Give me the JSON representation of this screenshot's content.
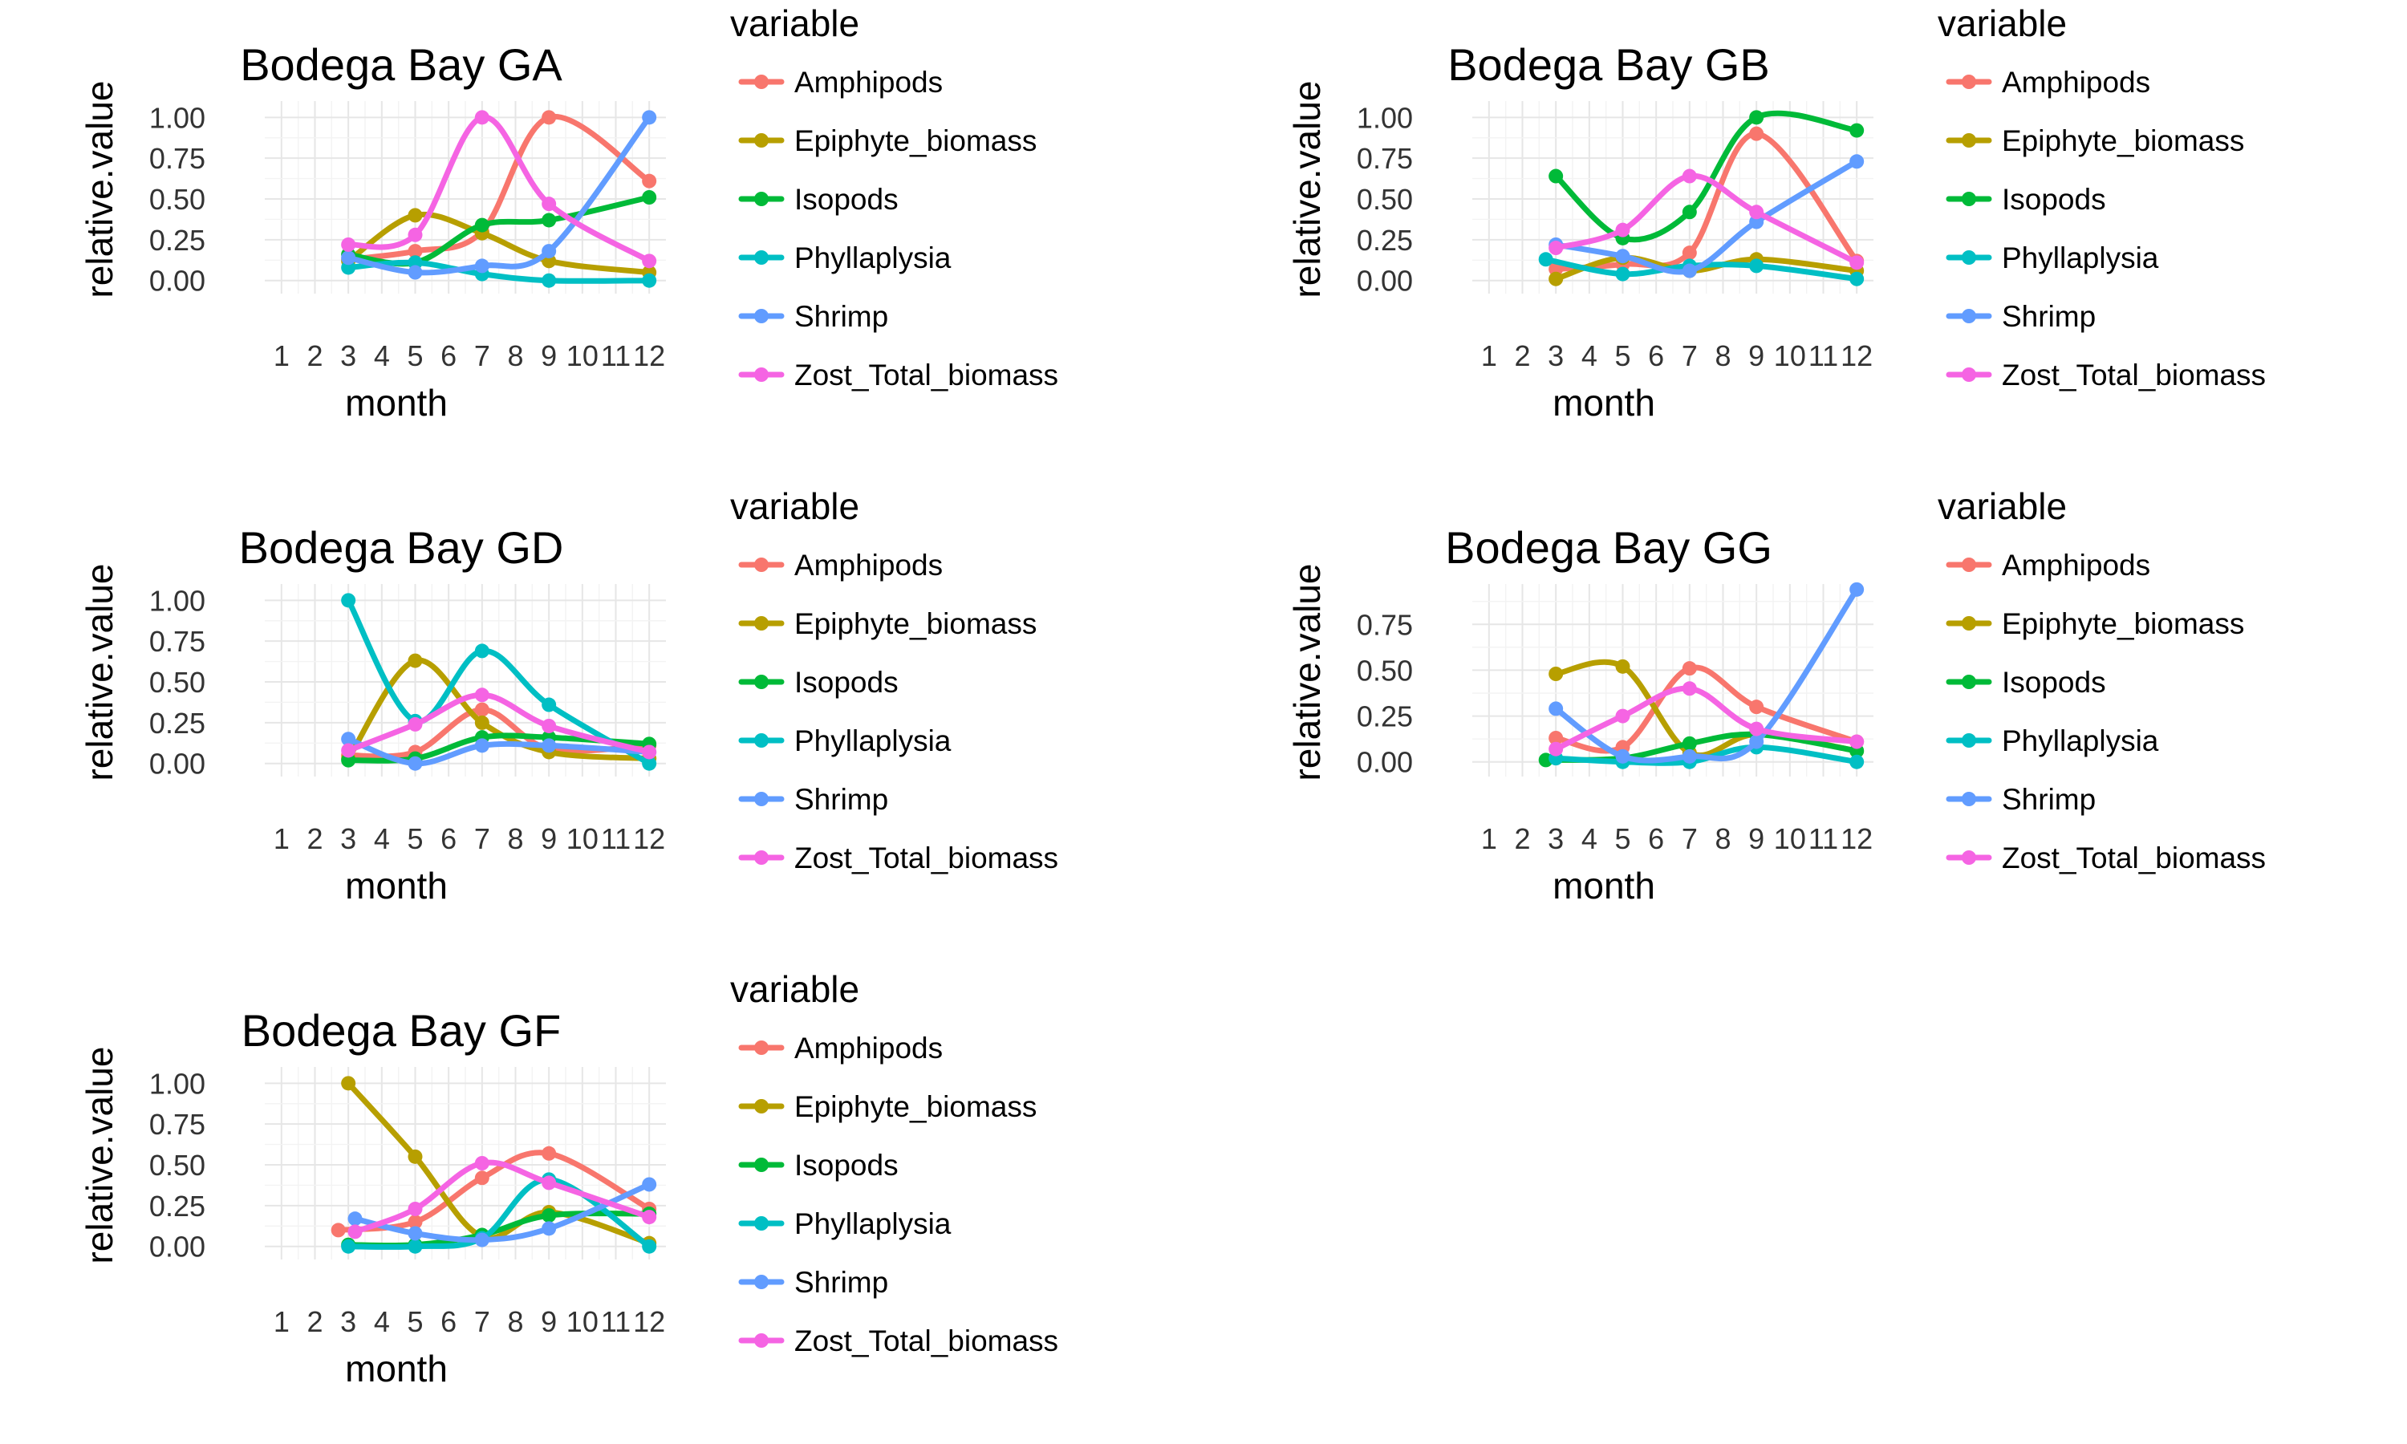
{
  "chart_data": [
    {
      "type": "line",
      "title": "Bodega Bay GA",
      "xlabel": "month",
      "ylabel": "relative.value",
      "x_ticks": [
        "1",
        "2",
        "3",
        "4",
        "5",
        "6",
        "7",
        "8",
        "9",
        "10",
        "11",
        "12"
      ],
      "y_ticks": [
        "0.00",
        "0.25",
        "0.50",
        "0.75",
        "1.00"
      ],
      "xlim": [
        0.5,
        12.5
      ],
      "ylim": [
        -0.08,
        1.1
      ],
      "legend_title": "variable",
      "legend_position": "right",
      "grid": true,
      "series": [
        {
          "name": "Amphipods",
          "x": [
            3,
            5,
            7,
            9,
            12
          ],
          "y": [
            0.13,
            0.18,
            0.3,
            1.0,
            0.61
          ]
        },
        {
          "name": "Epiphyte_biomass",
          "x": [
            3,
            5,
            7,
            9,
            12
          ],
          "y": [
            0.12,
            0.4,
            0.29,
            0.12,
            0.05
          ]
        },
        {
          "name": "Isopods",
          "x": [
            3,
            5,
            7,
            9,
            12
          ],
          "y": [
            0.16,
            0.11,
            0.34,
            0.37,
            0.51
          ]
        },
        {
          "name": "Phyllaplysia",
          "x": [
            3,
            5,
            7,
            9,
            12
          ],
          "y": [
            0.08,
            0.11,
            0.04,
            0.0,
            0.0
          ]
        },
        {
          "name": "Shrimp",
          "x": [
            3,
            5,
            7,
            9,
            12
          ],
          "y": [
            0.14,
            0.05,
            0.09,
            0.18,
            1.0
          ]
        },
        {
          "name": "Zost_Total_biomass",
          "x": [
            3,
            5,
            7,
            9,
            12
          ],
          "y": [
            0.22,
            0.28,
            1.0,
            0.47,
            0.12
          ]
        }
      ]
    },
    {
      "type": "line",
      "title": "Bodega Bay GB",
      "xlabel": "month",
      "ylabel": "relative.value",
      "x_ticks": [
        "1",
        "2",
        "3",
        "4",
        "5",
        "6",
        "7",
        "8",
        "9",
        "10",
        "11",
        "12"
      ],
      "y_ticks": [
        "0.00",
        "0.25",
        "0.50",
        "0.75",
        "1.00"
      ],
      "xlim": [
        0.5,
        12.5
      ],
      "ylim": [
        -0.08,
        1.1
      ],
      "legend_title": "variable",
      "legend_position": "right",
      "grid": true,
      "series": [
        {
          "name": "Amphipods",
          "x": [
            3,
            5,
            7,
            9,
            12
          ],
          "y": [
            0.07,
            0.1,
            0.17,
            0.9,
            0.12
          ]
        },
        {
          "name": "Epiphyte_biomass",
          "x": [
            3,
            5,
            7,
            9,
            12
          ],
          "y": [
            0.01,
            0.14,
            0.06,
            0.13,
            0.06
          ]
        },
        {
          "name": "Isopods",
          "x": [
            3,
            5,
            7,
            9,
            12
          ],
          "y": [
            0.64,
            0.26,
            0.42,
            1.0,
            0.92
          ]
        },
        {
          "name": "Phyllaplysia",
          "x": [
            2.7,
            5,
            7,
            9,
            12
          ],
          "y": [
            0.13,
            0.04,
            0.09,
            0.09,
            0.01
          ]
        },
        {
          "name": "Shrimp",
          "x": [
            3,
            5,
            7,
            9,
            12
          ],
          "y": [
            0.22,
            0.15,
            0.06,
            0.36,
            0.73
          ]
        },
        {
          "name": "Zost_Total_biomass",
          "x": [
            3,
            5,
            7,
            9,
            12
          ],
          "y": [
            0.2,
            0.31,
            0.64,
            0.42,
            0.11
          ]
        }
      ]
    },
    {
      "type": "line",
      "title": "Bodega Bay GD",
      "xlabel": "month",
      "ylabel": "relative.value",
      "x_ticks": [
        "1",
        "2",
        "3",
        "4",
        "5",
        "6",
        "7",
        "8",
        "9",
        "10",
        "11",
        "12"
      ],
      "y_ticks": [
        "0.00",
        "0.25",
        "0.50",
        "0.75",
        "1.00"
      ],
      "xlim": [
        0.5,
        12.5
      ],
      "ylim": [
        -0.08,
        1.1
      ],
      "legend_title": "variable",
      "legend_position": "right",
      "grid": true,
      "series": [
        {
          "name": "Amphipods",
          "x": [
            3,
            5,
            7,
            9,
            12
          ],
          "y": [
            0.05,
            0.07,
            0.33,
            0.09,
            0.11
          ]
        },
        {
          "name": "Epiphyte_biomass",
          "x": [
            3,
            5,
            7,
            9,
            12
          ],
          "y": [
            0.03,
            0.63,
            0.25,
            0.07,
            0.03
          ]
        },
        {
          "name": "Isopods",
          "x": [
            3,
            5,
            7,
            9,
            12
          ],
          "y": [
            0.02,
            0.03,
            0.16,
            0.16,
            0.12
          ]
        },
        {
          "name": "Phyllaplysia",
          "x": [
            3,
            5,
            7,
            9,
            12
          ],
          "y": [
            1.0,
            0.26,
            0.69,
            0.36,
            0.0
          ]
        },
        {
          "name": "Shrimp",
          "x": [
            3,
            5,
            7,
            9,
            12
          ],
          "y": [
            0.15,
            0.0,
            0.11,
            0.11,
            0.07
          ]
        },
        {
          "name": "Zost_Total_biomass",
          "x": [
            3,
            5,
            7,
            9,
            12
          ],
          "y": [
            0.08,
            0.24,
            0.42,
            0.23,
            0.07
          ]
        }
      ]
    },
    {
      "type": "line",
      "title": "Bodega Bay GG",
      "xlabel": "month",
      "ylabel": "relative.value",
      "x_ticks": [
        "1",
        "2",
        "3",
        "4",
        "5",
        "6",
        "7",
        "8",
        "9",
        "10",
        "11",
        "12"
      ],
      "y_ticks": [
        "0.00",
        "0.25",
        "0.50",
        "0.75"
      ],
      "xlim": [
        0.5,
        12.5
      ],
      "ylim": [
        -0.08,
        0.97
      ],
      "legend_title": "variable",
      "legend_position": "right",
      "grid": true,
      "series": [
        {
          "name": "Amphipods",
          "x": [
            3,
            5,
            7,
            9,
            12
          ],
          "y": [
            0.13,
            0.08,
            0.51,
            0.3,
            0.11
          ]
        },
        {
          "name": "Epiphyte_biomass",
          "x": [
            3,
            5,
            7,
            9,
            12
          ],
          "y": [
            0.48,
            0.52,
            0.05,
            0.15,
            0.06
          ]
        },
        {
          "name": "Isopods",
          "x": [
            2.7,
            5,
            7,
            9,
            12
          ],
          "y": [
            0.01,
            0.02,
            0.1,
            0.15,
            0.06
          ]
        },
        {
          "name": "Phyllaplysia",
          "x": [
            3,
            5,
            7,
            9,
            12
          ],
          "y": [
            0.02,
            0.0,
            0.0,
            0.08,
            0.0
          ]
        },
        {
          "name": "Shrimp",
          "x": [
            3,
            5,
            7,
            9,
            12
          ],
          "y": [
            0.29,
            0.03,
            0.03,
            0.11,
            0.94
          ]
        },
        {
          "name": "Zost_Total_biomass",
          "x": [
            3,
            5,
            7,
            9,
            12
          ],
          "y": [
            0.07,
            0.25,
            0.4,
            0.18,
            0.11
          ]
        }
      ]
    },
    {
      "type": "line",
      "title": "Bodega Bay GF",
      "xlabel": "month",
      "ylabel": "relative.value",
      "x_ticks": [
        "1",
        "2",
        "3",
        "4",
        "5",
        "6",
        "7",
        "8",
        "9",
        "10",
        "11",
        "12"
      ],
      "y_ticks": [
        "0.00",
        "0.25",
        "0.50",
        "0.75",
        "1.00"
      ],
      "xlim": [
        0.5,
        12.5
      ],
      "ylim": [
        -0.08,
        1.1
      ],
      "legend_title": "variable",
      "legend_position": "right",
      "grid": true,
      "series": [
        {
          "name": "Amphipods",
          "x": [
            2.7,
            5,
            7,
            9,
            12
          ],
          "y": [
            0.1,
            0.15,
            0.42,
            0.57,
            0.23
          ]
        },
        {
          "name": "Epiphyte_biomass",
          "x": [
            3,
            5,
            7,
            9,
            12
          ],
          "y": [
            1.0,
            0.55,
            0.06,
            0.21,
            0.02
          ]
        },
        {
          "name": "Isopods",
          "x": [
            3,
            5,
            7,
            9,
            12
          ],
          "y": [
            0.01,
            0.01,
            0.07,
            0.19,
            0.2
          ]
        },
        {
          "name": "Phyllaplysia",
          "x": [
            3,
            5,
            7,
            9,
            12
          ],
          "y": [
            0.0,
            0.0,
            0.05,
            0.41,
            0.0
          ]
        },
        {
          "name": "Shrimp",
          "x": [
            3.2,
            5,
            7,
            9,
            12
          ],
          "y": [
            0.17,
            0.08,
            0.04,
            0.11,
            0.38
          ]
        },
        {
          "name": "Zost_Total_biomass",
          "x": [
            3.2,
            5,
            7,
            9,
            12
          ],
          "y": [
            0.09,
            0.23,
            0.51,
            0.39,
            0.18
          ]
        }
      ]
    }
  ],
  "series_colors": {
    "Amphipods": "#F8766D",
    "Epiphyte_biomass": "#B79F00",
    "Isopods": "#00BA38",
    "Phyllaplysia": "#00BFC4",
    "Shrimp": "#619CFF",
    "Zost_Total_biomass": "#F564E3"
  }
}
